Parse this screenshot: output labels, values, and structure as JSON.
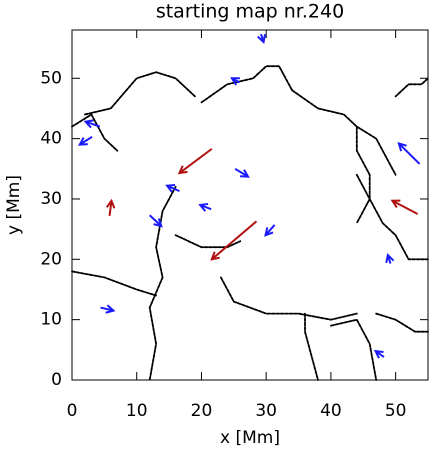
{
  "chart_data": {
    "type": "quiver",
    "title": "starting map nr.240",
    "xlabel": "x [Mm]",
    "ylabel": "y [Mm]",
    "xlim": [
      0,
      55
    ],
    "ylim": [
      0,
      58
    ],
    "xticks": [
      0,
      10,
      20,
      30,
      40,
      50
    ],
    "yticks": [
      0,
      10,
      20,
      30,
      40,
      50
    ],
    "lane_color": "#000000",
    "lanes": [
      {
        "x": [
          2,
          6,
          10,
          13,
          16,
          19
        ],
        "y": [
          44,
          45,
          50,
          51,
          50,
          47
        ]
      },
      {
        "x": [
          16,
          14,
          13,
          14,
          12,
          13,
          12
        ],
        "y": [
          32,
          28,
          22,
          17,
          12,
          6,
          0
        ]
      },
      {
        "x": [
          0,
          5,
          10,
          13
        ],
        "y": [
          18,
          17,
          15,
          14
        ]
      },
      {
        "x": [
          20,
          24,
          28,
          30,
          32,
          34
        ],
        "y": [
          46,
          49,
          50,
          52,
          52,
          48
        ]
      },
      {
        "x": [
          34,
          38,
          42,
          44,
          47,
          50
        ],
        "y": [
          48,
          45,
          44,
          42,
          40,
          34
        ]
      },
      {
        "x": [
          44,
          46,
          48,
          50,
          52,
          55
        ],
        "y": [
          34,
          30,
          26,
          24,
          20,
          20
        ]
      },
      {
        "x": [
          36,
          36,
          37,
          38
        ],
        "y": [
          11,
          8,
          4,
          0
        ]
      },
      {
        "x": [
          40,
          44,
          46,
          47
        ],
        "y": [
          9,
          10,
          6,
          0
        ]
      },
      {
        "x": [
          23,
          25,
          30,
          35,
          40,
          44
        ],
        "y": [
          17,
          13,
          11,
          11,
          10,
          11
        ]
      },
      {
        "x": [
          47,
          50,
          53,
          55
        ],
        "y": [
          11,
          10,
          8,
          8
        ]
      },
      {
        "x": [
          16,
          20,
          24,
          26
        ],
        "y": [
          24,
          22,
          22,
          23
        ]
      },
      {
        "x": [
          0,
          3,
          5,
          7
        ],
        "y": [
          42,
          44,
          40,
          38
        ]
      },
      {
        "x": [
          50,
          52,
          54,
          55
        ],
        "y": [
          47,
          49,
          49,
          50
        ]
      },
      {
        "x": [
          44,
          44,
          46,
          46,
          44
        ],
        "y": [
          42,
          38,
          34,
          30,
          26
        ]
      }
    ],
    "arrows": {
      "x": [
        29.2,
        25.9,
        4.3,
        3.1,
        53.7,
        25.2,
        16.6,
        21.5,
        12.0,
        31.3,
        49.2,
        4.4,
        48.2,
        21.6,
        5.8,
        53.4,
        28.5
      ],
      "y": [
        57.3,
        49.3,
        42.0,
        40.3,
        35.8,
        35.0,
        31.3,
        28.3,
        27.3,
        25.7,
        19.3,
        12.0,
        3.8,
        38.3,
        27.2,
        27.5,
        26.3
      ],
      "x2": [
        29.6,
        24.7,
        2.1,
        1.2,
        50.5,
        27.2,
        14.7,
        19.8,
        13.8,
        29.9,
        48.8,
        6.4,
        46.9,
        16.6,
        6.1,
        49.5,
        21.6
      ],
      "y2": [
        56.0,
        50.0,
        42.8,
        39.0,
        39.2,
        33.7,
        32.2,
        29.0,
        25.5,
        24.0,
        20.7,
        11.5,
        4.8,
        34.3,
        29.7,
        29.7,
        20.0
      ],
      "colors": [
        "#1a1aff",
        "#1a1aff",
        "#1a1aff",
        "#1a1aff",
        "#1a1aff",
        "#1a1aff",
        "#1a1aff",
        "#1a1aff",
        "#1a1aff",
        "#1a1aff",
        "#1a1aff",
        "#1a1aff",
        "#1a1aff",
        "#b01010",
        "#b01010",
        "#b01010",
        "#b01010"
      ]
    }
  }
}
